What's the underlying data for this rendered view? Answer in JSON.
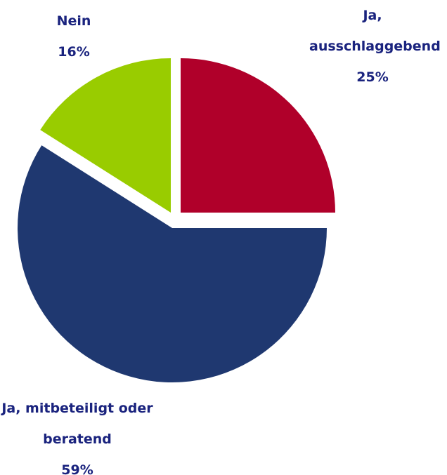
{
  "chart_data": {
    "type": "pie",
    "categories": [
      "Ja, ausschlaggebend",
      "Ja, mitbeteiligt oder beratend",
      "Nein"
    ],
    "values": [
      25,
      59,
      16
    ],
    "value_labels": [
      "25%",
      "59%",
      "16%"
    ],
    "colors": [
      "#b0002a",
      "#1f3870",
      "#99cc00"
    ]
  }
}
